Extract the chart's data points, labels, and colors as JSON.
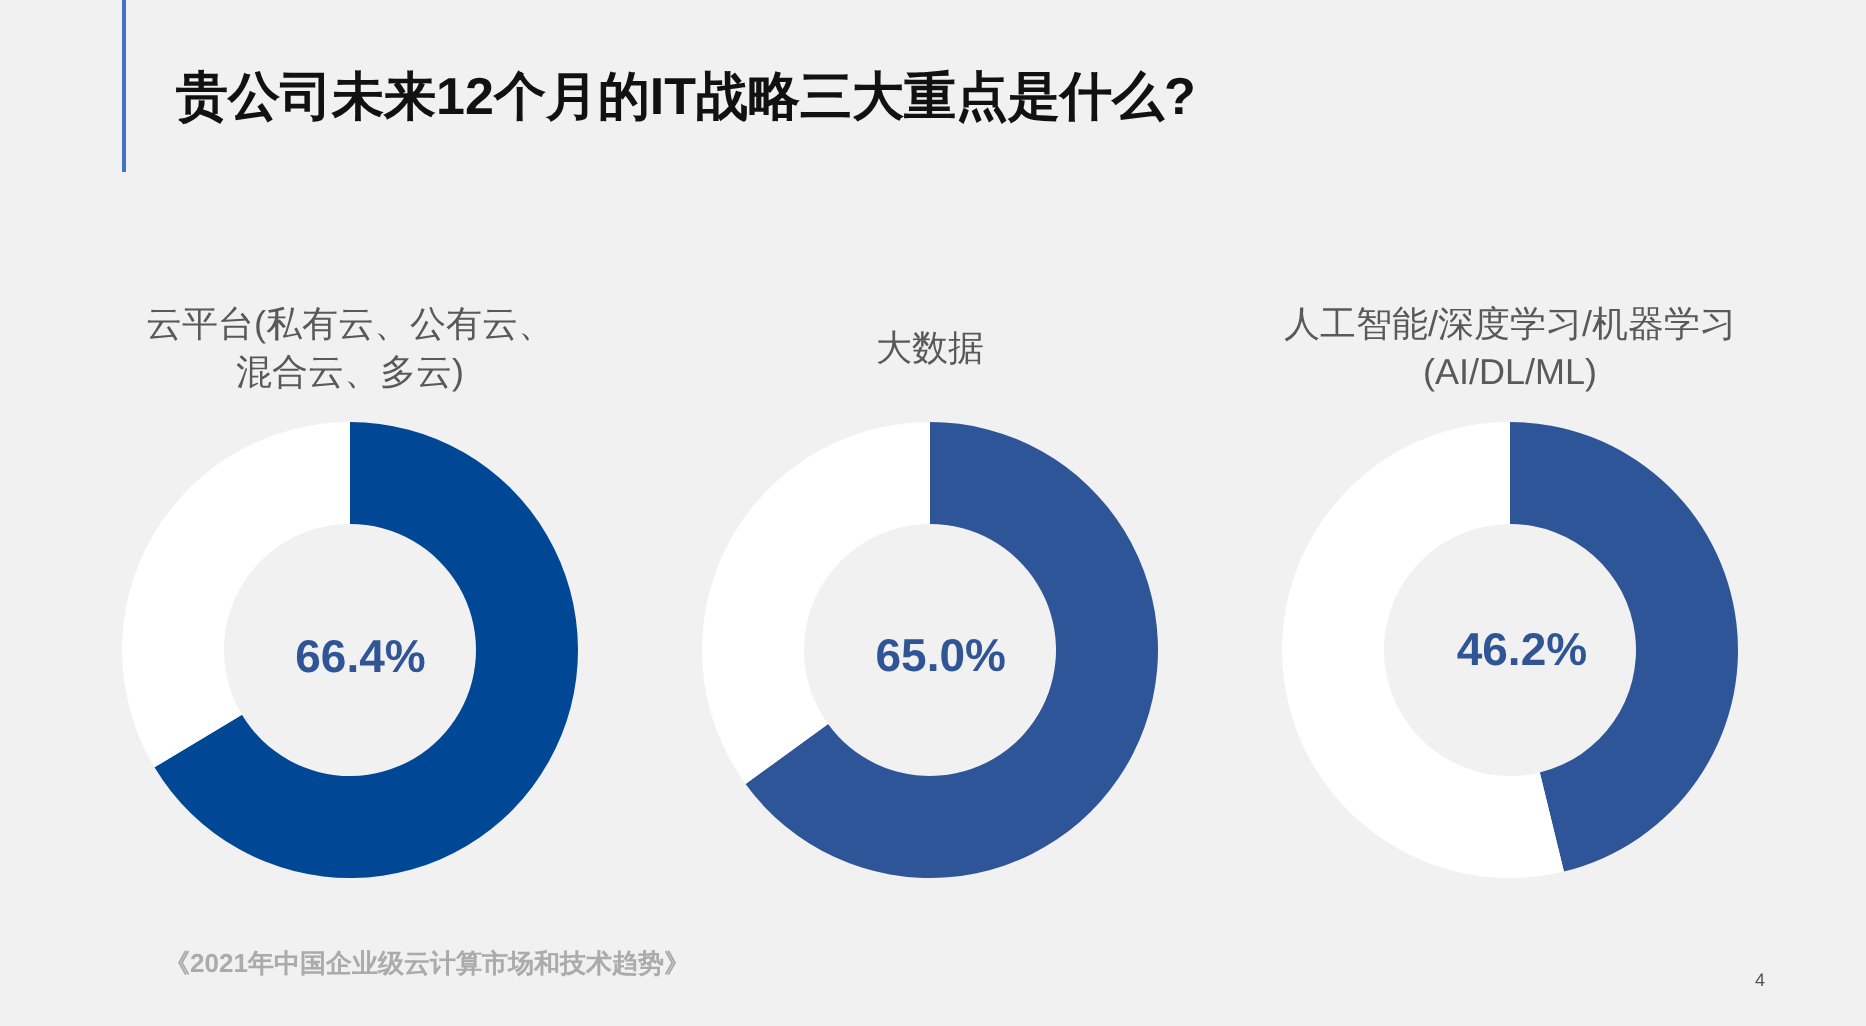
{
  "chart_data": [
    {
      "type": "other",
      "title": "贵公司未来12个月的IT战略三大重点是什么?",
      "annotations": [
        "《2021年中国企业级云计算市场和技术趋势》",
        "4"
      ]
    },
    {
      "type": "donut",
      "title": "云平台(私有云、公有云、混合云、多云)",
      "categories": [
        null,
        null
      ],
      "values": [
        66.4,
        33.6
      ],
      "colors": [
        "#004795",
        "#ffffff"
      ],
      "value_labels": [
        "66.4%",
        null
      ]
    },
    {
      "type": "donut",
      "title": "大数据",
      "categories": [
        null,
        null
      ],
      "values": [
        65.0,
        35.0
      ],
      "colors": [
        "#2e5597",
        "#ffffff"
      ],
      "value_labels": [
        "65.0%",
        null
      ]
    },
    {
      "type": "donut",
      "title": "人工智能/深度学习/机器学习(AI/DL/ML)",
      "categories": [
        null,
        null
      ],
      "values": [
        46.2,
        53.8
      ],
      "colors": [
        "#2e5597",
        "#ffffff"
      ],
      "value_labels": [
        "46.2%",
        null
      ]
    }
  ]
}
